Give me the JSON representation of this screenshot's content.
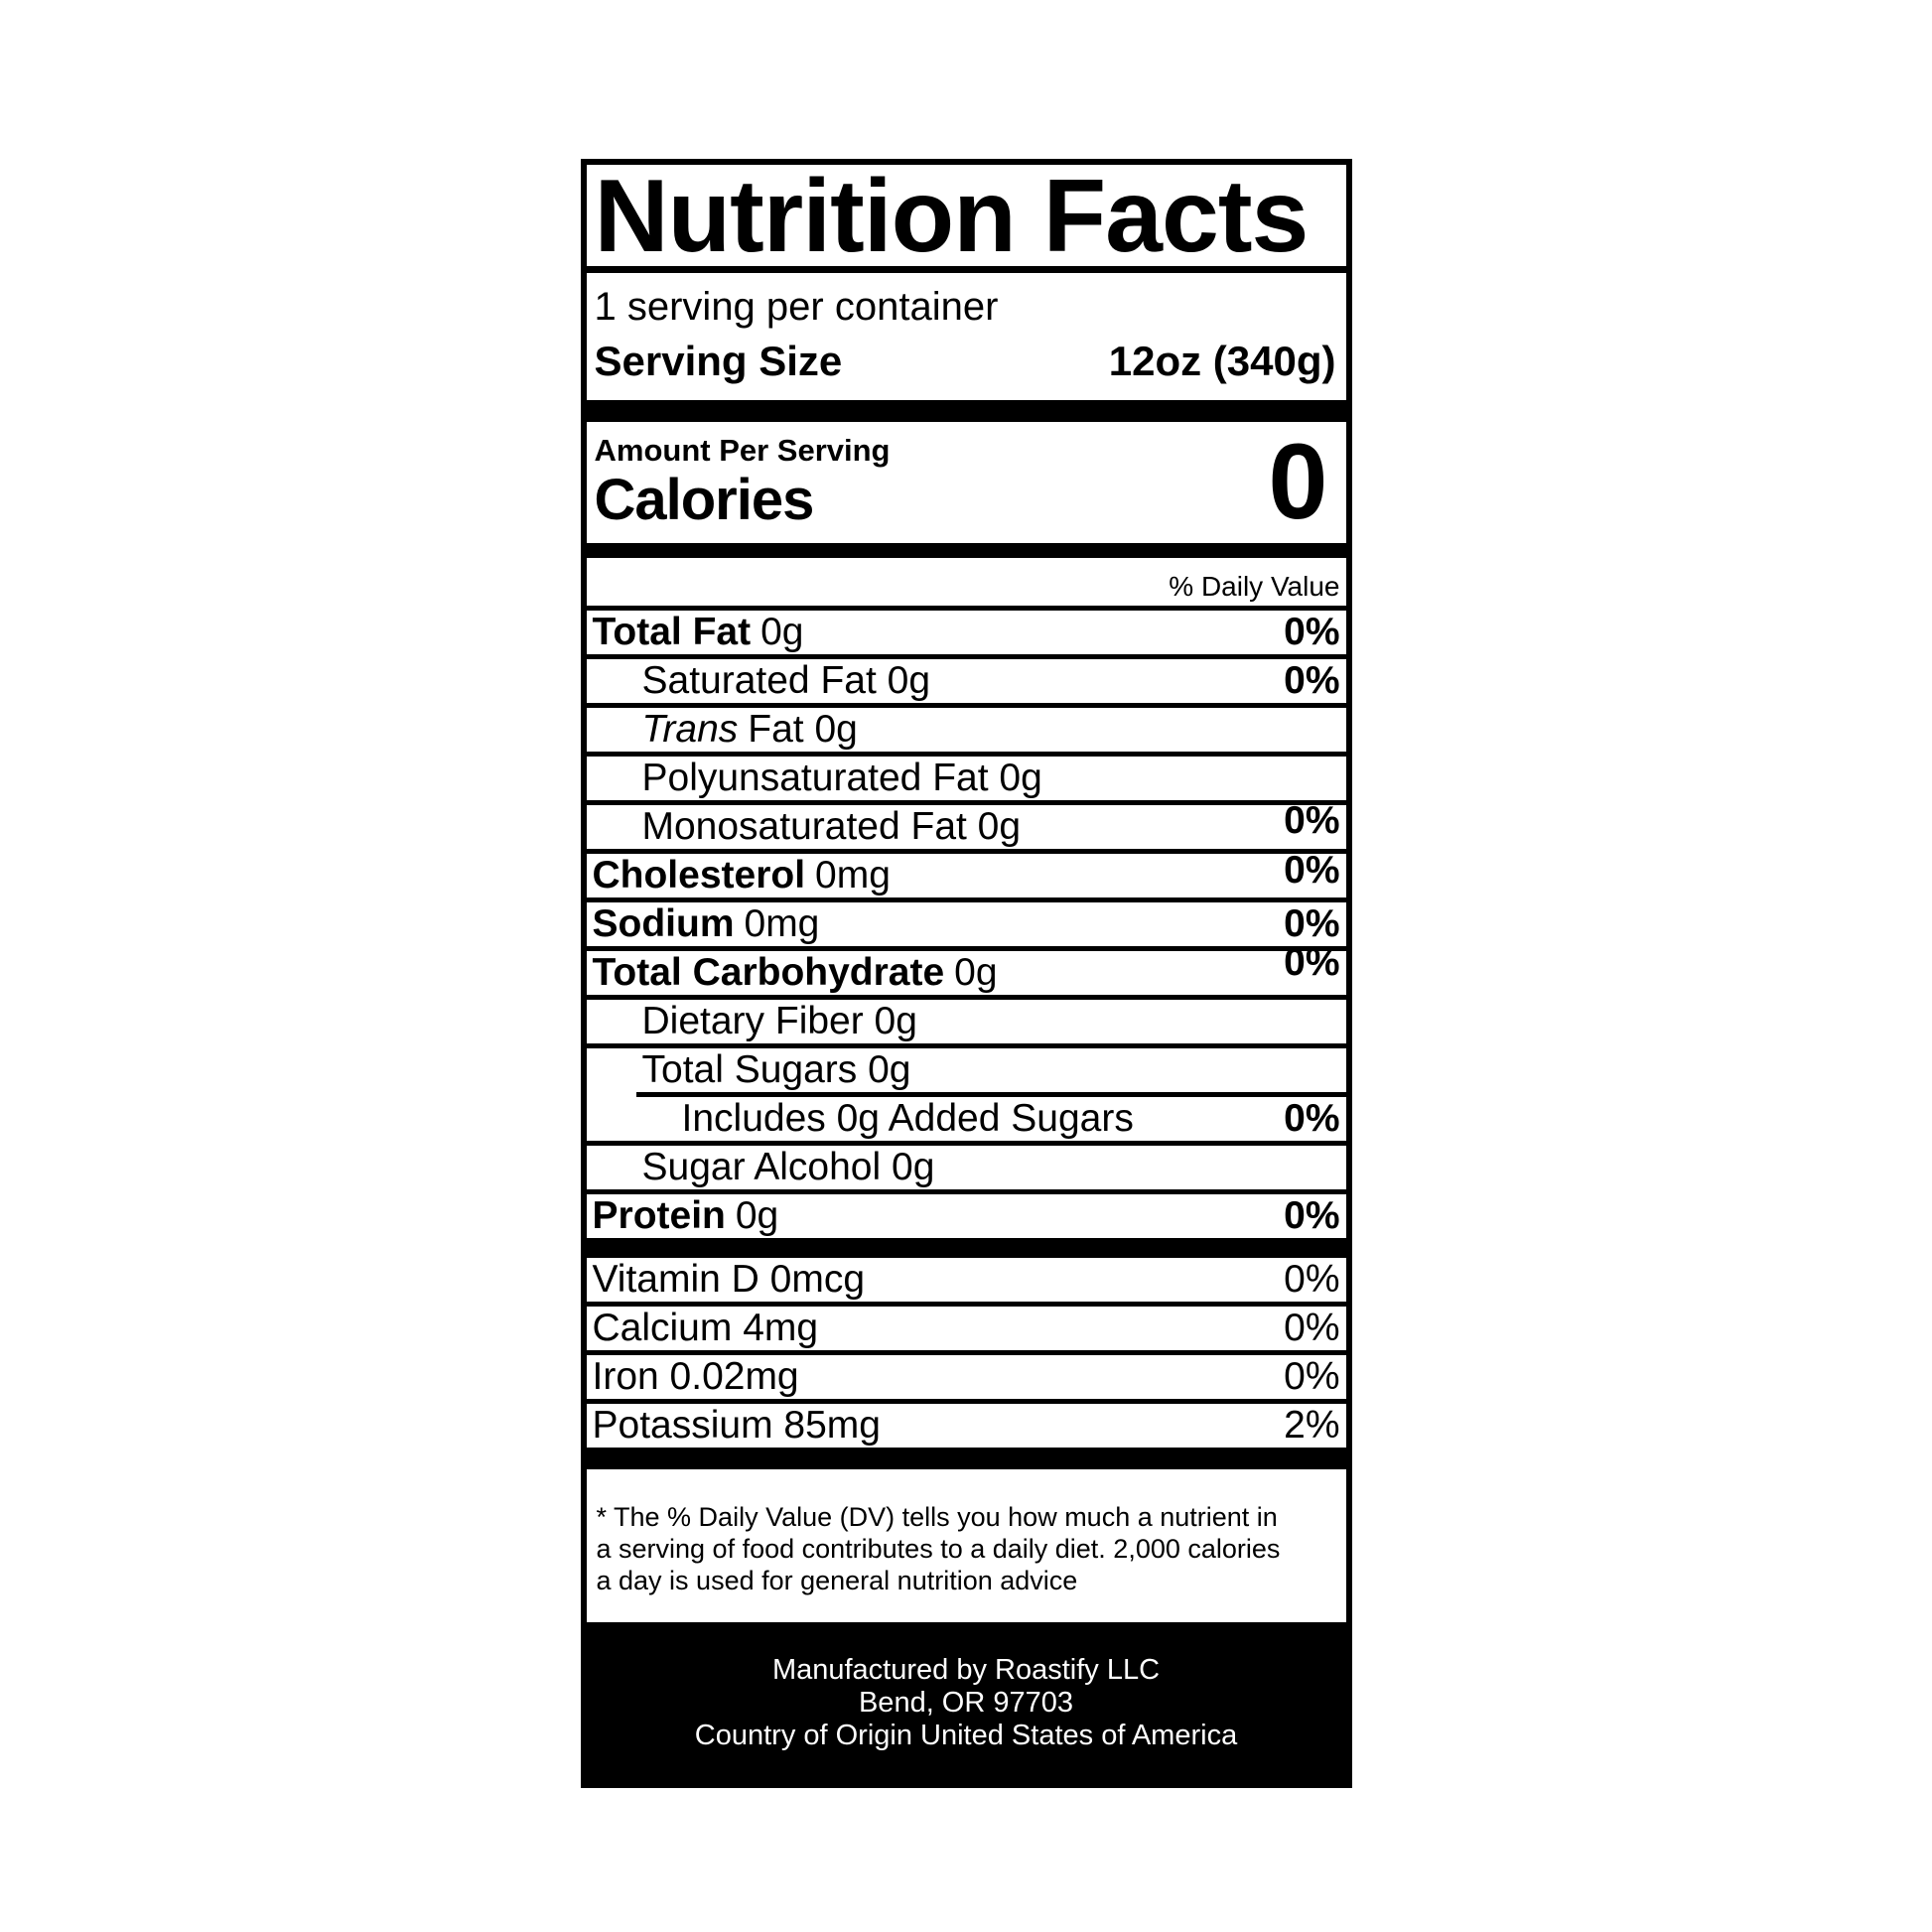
{
  "title": "Nutrition Facts",
  "serving": {
    "servings_per_container": "1 serving per container",
    "serving_size_label": "Serving Size",
    "serving_size_value": "12oz (340g)"
  },
  "calories": {
    "amount_per_serving_label": "Amount Per Serving",
    "calories_label": "Calories",
    "calories_value": "0"
  },
  "daily_value_header": "% Daily Value",
  "nutrient_rows": [
    {
      "bold": "Total Fat",
      "text": "0g",
      "percent": "0%",
      "indent": 0
    },
    {
      "text": "Saturated Fat 0g",
      "percent": "0%",
      "indent": 1
    },
    {
      "italic": "Trans",
      "text": "Fat 0g",
      "indent": 1
    },
    {
      "text": "Polyunsaturated Fat 0g",
      "indent": 1
    },
    {
      "text": "Monosaturated Fat 0g",
      "percent": "0%",
      "indent": 1
    },
    {
      "bold": "Cholesterol",
      "text": "0mg",
      "percent": "0%",
      "indent": 0
    },
    {
      "bold": "Sodium",
      "text": "0mg",
      "percent": "0%",
      "indent": 0
    },
    {
      "bold": "Total Carbohydrate",
      "text": "0g",
      "percent": "0%",
      "indent": 0
    },
    {
      "text": "Dietary Fiber 0g",
      "indent": 1
    },
    {
      "text": "Total Sugars 0g",
      "indent": 1
    },
    {
      "text": "Includes 0g Added Sugars",
      "percent": "0%",
      "indent": 2
    },
    {
      "text": "Sugar Alcohol 0g",
      "indent": 1
    },
    {
      "bold": "Protein",
      "text": "0g",
      "percent": "0%",
      "indent": 0
    }
  ],
  "mineral_rows": [
    {
      "text": "Vitamin D 0mcg",
      "percent": "0%"
    },
    {
      "text": "Calcium 4mg",
      "percent": "0%"
    },
    {
      "text": "Iron 0.02mg",
      "percent": "0%"
    },
    {
      "text": "Potassium 85mg",
      "percent": "2%"
    }
  ],
  "footnote_lines": [
    "* The % Daily Value (DV) tells you how much a nutrient in",
    "a serving of food contributes to a daily diet. 2,000 calories",
    "a day is used for general nutrition advice"
  ],
  "footer_lines": [
    "Manufactured by Roastify LLC",
    "Bend, OR 97703",
    "Country of Origin United States of America"
  ],
  "colors": {
    "ink": "#000000",
    "paper": "#ffffff"
  }
}
